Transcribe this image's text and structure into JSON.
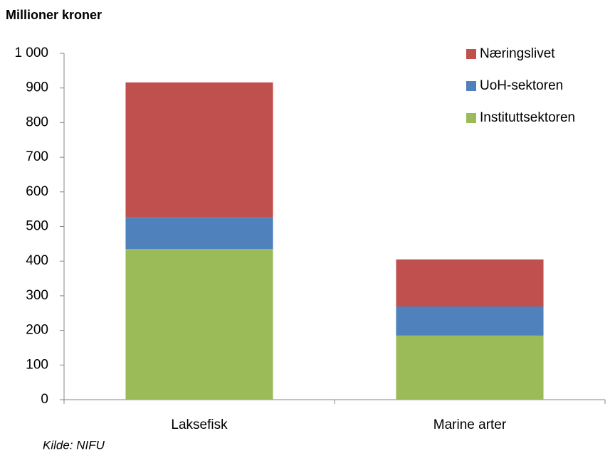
{
  "chart_data": {
    "type": "stacked_bar",
    "title": "Millioner kroner",
    "source": "Kilde: NIFU",
    "categories": [
      "Laksefisk",
      "Marine arter"
    ],
    "series": [
      {
        "name": "Instituttsektoren",
        "color": "#9bbb59",
        "values": [
          435,
          185
        ]
      },
      {
        "name": "UoH-sektoren",
        "color": "#4f81bd",
        "values": [
          91,
          84
        ]
      },
      {
        "name": "Næringslivet",
        "color": "#c0504d",
        "values": [
          390,
          136
        ]
      }
    ],
    "ylim": [
      0,
      1000
    ],
    "yticks": [
      0,
      100,
      200,
      300,
      400,
      500,
      600,
      700,
      800,
      900,
      {
        "value": 1000,
        "label": "1 000"
      }
    ],
    "legend": "top-right"
  }
}
